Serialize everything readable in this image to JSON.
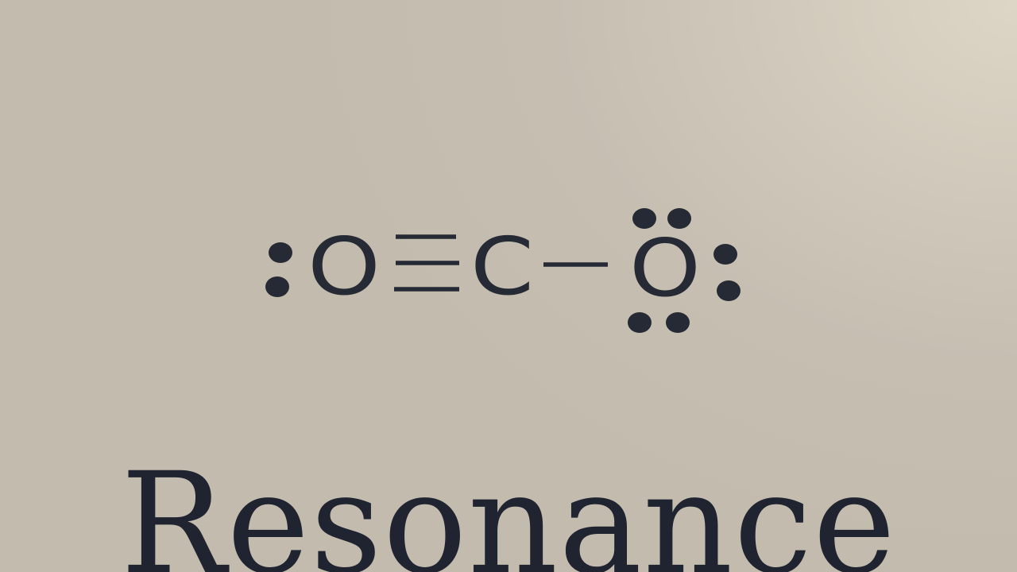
{
  "diagram": {
    "atoms": [
      {
        "id": "o_left",
        "label": "O",
        "lone_pairs": 1
      },
      {
        "id": "c_center",
        "label": "C",
        "lone_pairs": 0
      },
      {
        "id": "o_right",
        "label": "O",
        "lone_pairs": 3
      }
    ],
    "bonds": [
      {
        "from": "o_left",
        "to": "c_center",
        "order": 3
      },
      {
        "from": "c_center",
        "to": "o_right",
        "order": 1
      }
    ]
  },
  "title": "Resonance",
  "colors": {
    "ink": "#262a34",
    "background": "#c6beb1"
  }
}
